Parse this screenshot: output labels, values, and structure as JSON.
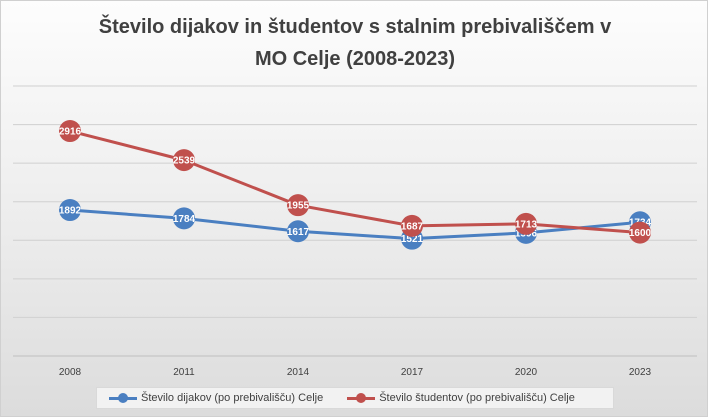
{
  "chart_data": {
    "type": "line",
    "title": "Število dijakov in študentov s stalnim prebivališčem v\nMO Celje (2008-2023)",
    "categories": [
      "2008",
      "2011",
      "2014",
      "2017",
      "2020",
      "2023"
    ],
    "ylim": [
      0,
      3500
    ],
    "y_ticks_labeled": false,
    "grid": true,
    "legend_position": "bottom",
    "series": [
      {
        "name": "Število dijakov (po prebivališču) Celje",
        "color": "#4a7fc1",
        "values": [
          1892,
          1784,
          1617,
          1521,
          1596,
          1734
        ]
      },
      {
        "name": "Število študentov (po prebivališču) Celje",
        "color": "#c0504d",
        "values": [
          2916,
          2539,
          1955,
          1687,
          1713,
          1600
        ]
      }
    ]
  }
}
